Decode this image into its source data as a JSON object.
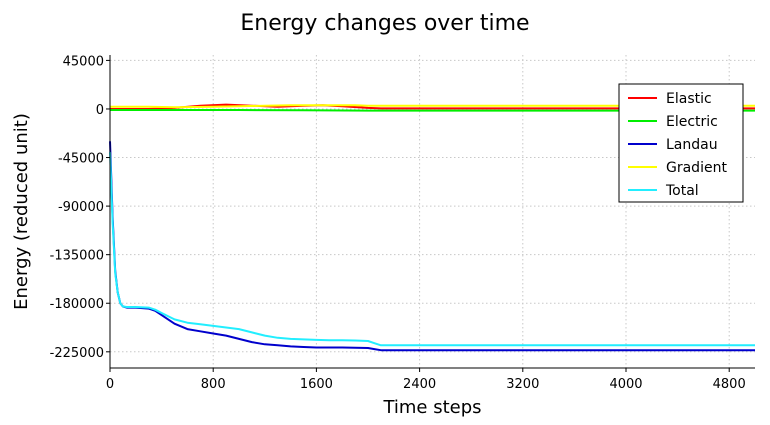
{
  "chart_data": {
    "type": "line",
    "title": "Energy changes over time",
    "xlabel": "Time steps",
    "ylabel": "Energy (reduced unit)",
    "xlim": [
      0,
      5000
    ],
    "ylim": [
      -240000,
      50000
    ],
    "xticks": [
      0,
      800,
      1600,
      2400,
      3200,
      4000,
      4800
    ],
    "yticks": [
      45000,
      0,
      -45000,
      -90000,
      -135000,
      -180000,
      -225000
    ],
    "grid": true,
    "legend_position": "top-right",
    "series": [
      {
        "name": "Elastic",
        "color": "#ff0000",
        "x": [
          0,
          300,
          500,
          700,
          900,
          1100,
          1300,
          1500,
          1650,
          1800,
          2000,
          2100,
          3000,
          4000,
          5000
        ],
        "y": [
          0,
          0,
          1000,
          3000,
          4000,
          3000,
          2000,
          3000,
          3500,
          2500,
          1000,
          500,
          500,
          500,
          500
        ]
      },
      {
        "name": "Electric",
        "color": "#00ee00",
        "x": [
          0,
          500,
          1000,
          1500,
          2000,
          2100,
          3000,
          4000,
          5000
        ],
        "y": [
          -1000,
          -1000,
          -1000,
          -1200,
          -1500,
          -1500,
          -1500,
          -1500,
          -1500
        ]
      },
      {
        "name": "Landau",
        "color": "#0000cc",
        "x": [
          0,
          20,
          40,
          60,
          80,
          100,
          130,
          160,
          200,
          300,
          350,
          400,
          500,
          600,
          700,
          800,
          900,
          1000,
          1100,
          1200,
          1300,
          1400,
          1500,
          1600,
          1700,
          1800,
          1900,
          2000,
          2050,
          2100,
          2400,
          3000,
          4000,
          5000
        ],
        "y": [
          -30000,
          -100000,
          -150000,
          -170000,
          -180000,
          -183000,
          -184000,
          -184000,
          -184000,
          -185000,
          -187000,
          -191000,
          -199000,
          -204000,
          -206000,
          -208000,
          -210000,
          -213000,
          -216000,
          -218000,
          -219000,
          -220000,
          -220500,
          -221000,
          -221000,
          -221000,
          -221200,
          -221500,
          -222500,
          -223500,
          -223500,
          -223500,
          -223500,
          -223500
        ]
      },
      {
        "name": "Gradient",
        "color": "#ffff00",
        "x": [
          0,
          300,
          500,
          800,
          1000,
          1200,
          1400,
          1600,
          1800,
          1900,
          2000,
          2050,
          3000,
          4000,
          5000
        ],
        "y": [
          2000,
          2000,
          1500,
          2000,
          2500,
          3000,
          3500,
          3500,
          3500,
          3500,
          3000,
          3000,
          3000,
          3000,
          3000
        ]
      },
      {
        "name": "Total",
        "color": "#22eeff",
        "x": [
          0,
          20,
          40,
          60,
          80,
          100,
          130,
          160,
          200,
          300,
          350,
          400,
          500,
          600,
          700,
          800,
          900,
          1000,
          1100,
          1200,
          1300,
          1400,
          1500,
          1600,
          1700,
          1800,
          1900,
          2000,
          2050,
          2100,
          2400,
          3000,
          4000,
          5000
        ],
        "y": [
          -40000,
          -105000,
          -152000,
          -170000,
          -180000,
          -183000,
          -183500,
          -183500,
          -183500,
          -184000,
          -186000,
          -189000,
          -195000,
          -198000,
          -199500,
          -201000,
          -202500,
          -204000,
          -207000,
          -210000,
          -212000,
          -213000,
          -213500,
          -214000,
          -214200,
          -214300,
          -214500,
          -215000,
          -217000,
          -219000,
          -219000,
          -219000,
          -219000,
          -219000
        ]
      }
    ]
  }
}
